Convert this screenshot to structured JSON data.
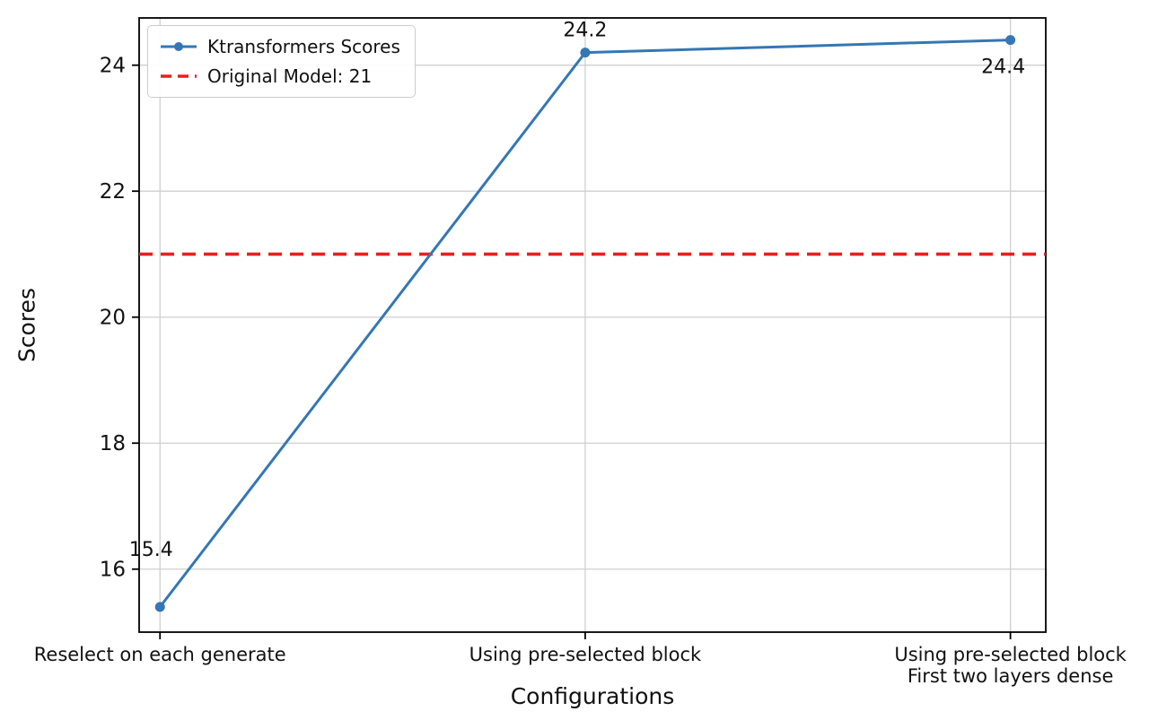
{
  "chart_data": {
    "type": "line",
    "title": "",
    "xlabel": "Configurations",
    "ylabel": "Scores",
    "categories": [
      "Reselect on each generate",
      "Using pre-selected block",
      "Using pre-selected block\nFirst two layers dense"
    ],
    "series": [
      {
        "name": "Ktransformers Scores",
        "values": [
          15.4,
          24.2,
          24.4
        ],
        "color": "#3477b4",
        "marker": "circle",
        "line_width": 3
      }
    ],
    "baseline": {
      "label": "Original Model: 21",
      "value": 21,
      "color": "#ea1e1e",
      "style": "dashed"
    },
    "point_labels": [
      "15.4",
      "24.2",
      "24.4"
    ],
    "yticks": [
      "16",
      "18",
      "20",
      "22",
      "24"
    ],
    "ytick_values": [
      16,
      18,
      20,
      22,
      24
    ],
    "ylim": [
      15.0,
      24.75
    ],
    "grid": true,
    "grid_color": "#cfcfcf",
    "spine_color": "#000000",
    "legend_position": "upper left"
  }
}
